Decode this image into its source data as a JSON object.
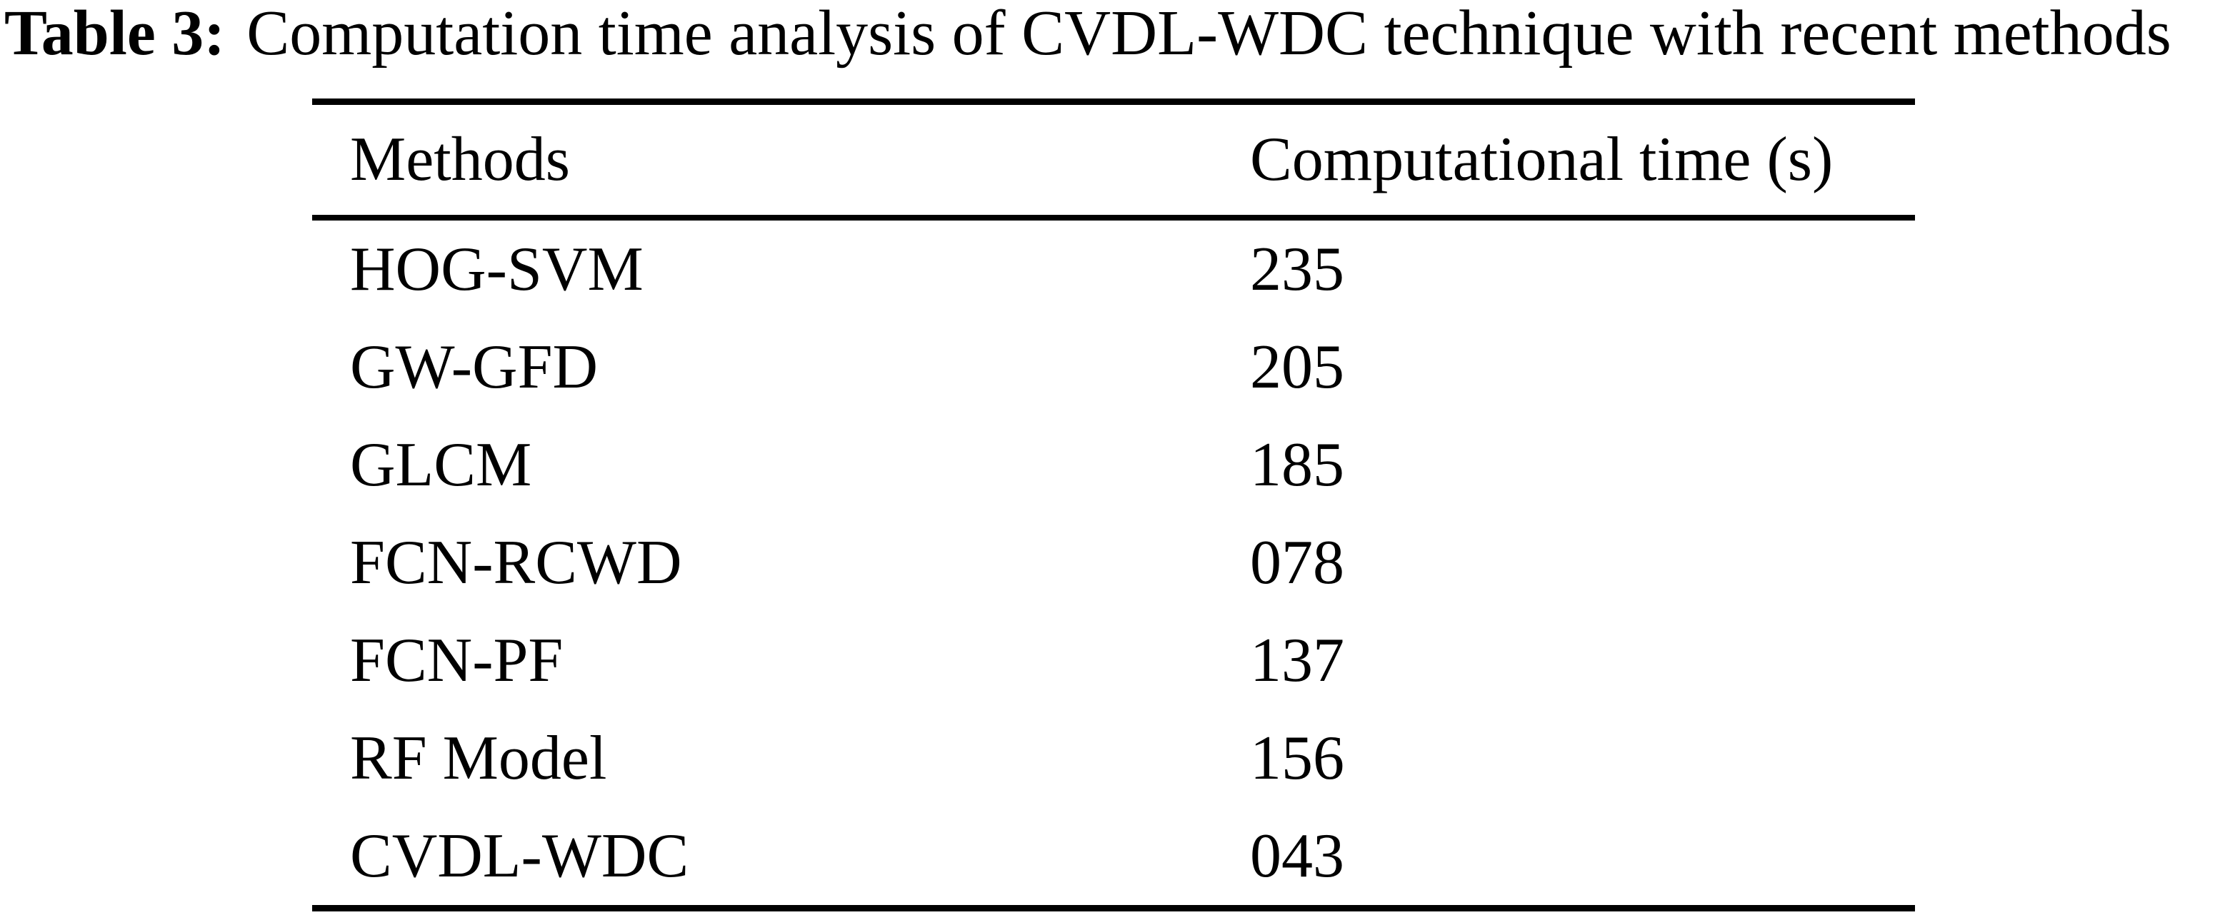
{
  "caption": {
    "label": "Table 3:",
    "text": "Computation time analysis of CVDL-WDC technique with recent methods"
  },
  "table": {
    "columns": {
      "methods": "Methods",
      "time": "Computational time (s)"
    },
    "rows": [
      {
        "method": "HOG-SVM",
        "time": "235"
      },
      {
        "method": "GW-GFD",
        "time": "205"
      },
      {
        "method": "GLCM",
        "time": "185"
      },
      {
        "method": "FCN-RCWD",
        "time": "078"
      },
      {
        "method": "FCN-PF",
        "time": "137"
      },
      {
        "method": "RF Model",
        "time": "156"
      },
      {
        "method": "CVDL-WDC",
        "time": "043"
      }
    ]
  },
  "colors": {
    "background": "#ffffff",
    "text": "#000000",
    "rule": "#000000"
  }
}
